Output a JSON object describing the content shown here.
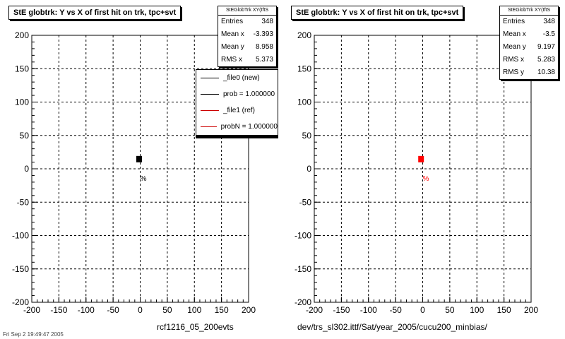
{
  "chart_data": [
    {
      "type": "scatter",
      "title": "StE globtrk: Y vs X of first hit on trk, tpc+svt",
      "xlim": [
        -200,
        200
      ],
      "ylim": [
        -200,
        200
      ],
      "xticks": [
        "-200",
        "-150",
        "-100",
        "-50",
        "0",
        "50",
        "100",
        "150",
        "200"
      ],
      "yticks": [
        "200",
        "150",
        "100",
        "50",
        "0",
        "-50",
        "-100",
        "-150",
        "-200"
      ],
      "grid": true,
      "color": "#000000",
      "cluster": {
        "x": -2,
        "y": 15
      },
      "annotation": {
        "text": "%",
        "x": 6,
        "y": -14
      },
      "stats": {
        "header": "StEGlobTrk XY(tftS",
        "rows": [
          {
            "label": "Entries",
            "value": "348"
          },
          {
            "label": "Mean x",
            "value": "-3.393"
          },
          {
            "label": "Mean y",
            "value": "8.958"
          },
          {
            "label": "RMS x",
            "value": "5.373"
          }
        ]
      },
      "legend": {
        "position": "top-right",
        "entries": [
          {
            "label": "_file0 (new)",
            "color": "#000000"
          },
          {
            "label": "prob = 1.000000",
            "color": "#000000"
          },
          {
            "label": "_file1 (ref)",
            "color": "#cc0000"
          },
          {
            "label": "probN = 1.000000",
            "color": "#cc0000"
          }
        ]
      },
      "bottom_label": "rcf1216_05_200evts"
    },
    {
      "type": "scatter",
      "title": "StE globtrk: Y vs X of first hit on trk, tpc+svt",
      "xlim": [
        -200,
        200
      ],
      "ylim": [
        -200,
        200
      ],
      "xticks": [
        "-200",
        "-150",
        "-100",
        "-50",
        "0",
        "50",
        "100",
        "150",
        "200"
      ],
      "yticks": [
        "200",
        "150",
        "100",
        "50",
        "0",
        "-50",
        "-100",
        "-150",
        "-200"
      ],
      "grid": true,
      "color": "#ff0000",
      "cluster": {
        "x": -3,
        "y": 15
      },
      "annotation": {
        "text": "%",
        "x": 6,
        "y": -14
      },
      "stats": {
        "header": "StEGlobTrk XY(tftS",
        "rows": [
          {
            "label": "Entries",
            "value": "348"
          },
          {
            "label": "Mean x",
            "value": "-3.5"
          },
          {
            "label": "Mean y",
            "value": "9.197"
          },
          {
            "label": "RMS x",
            "value": "5.283"
          },
          {
            "label": "RMS y",
            "value": "10.38"
          }
        ]
      },
      "bottom_label": "dev/trs_sl302.ittf/Sat/year_2005/cucu200_minbias/"
    }
  ],
  "footer": "Fri Sep 2 19:49:47 2005"
}
